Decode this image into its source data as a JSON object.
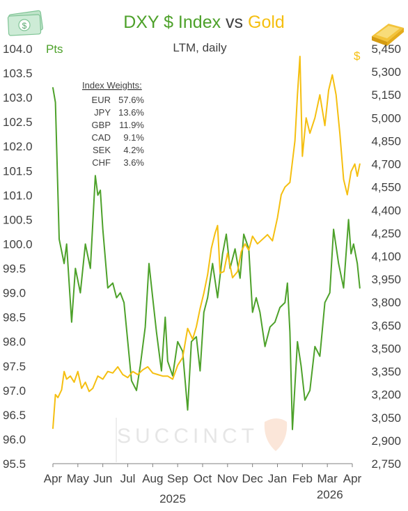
{
  "chart_data": {
    "type": "line",
    "title": {
      "part1": "DXY $ Index",
      "part2": " vs ",
      "part3": "Gold"
    },
    "subtitle": "LTM, daily",
    "colors": {
      "dxy": "#4da12a",
      "gold": "#f5bf10",
      "text": "#404040",
      "axis": "#808080"
    },
    "x_axis": {
      "months": [
        "Apr",
        "May",
        "Jun",
        "Jul",
        "Aug",
        "Sep",
        "Oct",
        "Nov",
        "Dec",
        "Jan",
        "Feb",
        "Mar",
        "Apr"
      ],
      "years": [
        "2025",
        "2026"
      ]
    },
    "y_left": {
      "unit": "Pts",
      "range": [
        95.5,
        104.0
      ],
      "ticks": [
        "104.0",
        "103.5",
        "103.0",
        "102.5",
        "102.0",
        "101.5",
        "101.0",
        "100.5",
        "100.0",
        "99.5",
        "99.0",
        "98.5",
        "98.0",
        "97.5",
        "97.0",
        "96.5",
        "96.0",
        "95.5"
      ]
    },
    "y_right": {
      "unit": "$",
      "range": [
        2750,
        5450
      ],
      "ticks": [
        "5,450",
        "5,300",
        "5,150",
        "5,000",
        "4,850",
        "4,700",
        "4,550",
        "4,400",
        "4,250",
        "4,100",
        "3,950",
        "3,800",
        "3,650",
        "3,500",
        "3,350",
        "3,200",
        "3,050",
        "2,900",
        "2,750"
      ]
    },
    "legend": {
      "heading": "Index Weights:",
      "items": [
        {
          "name": "EUR",
          "weight": "57.6%"
        },
        {
          "name": "JPY",
          "weight": "13.6%"
        },
        {
          "name": "GBP",
          "weight": "11.9%"
        },
        {
          "name": "CAD",
          "weight": "9.1%"
        },
        {
          "name": "SEK",
          "weight": "4.2%"
        },
        {
          "name": "CHF",
          "weight": "3.6%"
        }
      ]
    },
    "watermark": "SUCCINCT",
    "series": [
      {
        "name": "DXY $ Index",
        "axis": "left",
        "points": [
          [
            0.0,
            103.2
          ],
          [
            0.1,
            102.9
          ],
          [
            0.25,
            100.1
          ],
          [
            0.45,
            99.6
          ],
          [
            0.55,
            100.0
          ],
          [
            0.75,
            98.4
          ],
          [
            0.9,
            99.5
          ],
          [
            1.1,
            99.0
          ],
          [
            1.3,
            100.0
          ],
          [
            1.5,
            99.5
          ],
          [
            1.7,
            101.4
          ],
          [
            1.8,
            101.0
          ],
          [
            1.9,
            101.1
          ],
          [
            2.0,
            100.3
          ],
          [
            2.2,
            99.1
          ],
          [
            2.4,
            99.2
          ],
          [
            2.55,
            98.9
          ],
          [
            2.7,
            99.0
          ],
          [
            2.85,
            98.8
          ],
          [
            3.0,
            98.0
          ],
          [
            3.15,
            97.2
          ],
          [
            3.35,
            97.0
          ],
          [
            3.5,
            97.5
          ],
          [
            3.7,
            98.3
          ],
          [
            3.85,
            99.6
          ],
          [
            4.0,
            98.9
          ],
          [
            4.15,
            98.2
          ],
          [
            4.35,
            97.4
          ],
          [
            4.5,
            98.5
          ],
          [
            4.6,
            97.6
          ],
          [
            4.8,
            97.3
          ],
          [
            5.0,
            98.0
          ],
          [
            5.2,
            97.8
          ],
          [
            5.4,
            96.6
          ],
          [
            5.55,
            98.0
          ],
          [
            5.75,
            98.1
          ],
          [
            5.9,
            97.4
          ],
          [
            6.05,
            98.6
          ],
          [
            6.2,
            98.9
          ],
          [
            6.4,
            99.6
          ],
          [
            6.6,
            98.9
          ],
          [
            6.8,
            99.8
          ],
          [
            6.95,
            100.2
          ],
          [
            7.1,
            99.5
          ],
          [
            7.3,
            99.9
          ],
          [
            7.5,
            99.3
          ],
          [
            7.65,
            100.2
          ],
          [
            7.85,
            99.9
          ],
          [
            8.0,
            98.6
          ],
          [
            8.15,
            98.9
          ],
          [
            8.3,
            98.6
          ],
          [
            8.5,
            97.9
          ],
          [
            8.7,
            98.3
          ],
          [
            8.9,
            98.4
          ],
          [
            9.1,
            98.7
          ],
          [
            9.3,
            98.8
          ],
          [
            9.4,
            99.2
          ],
          [
            9.5,
            98.2
          ],
          [
            9.6,
            96.2
          ],
          [
            9.8,
            98.0
          ],
          [
            9.95,
            97.5
          ],
          [
            10.1,
            96.8
          ],
          [
            10.3,
            97.0
          ],
          [
            10.5,
            97.9
          ],
          [
            10.7,
            97.7
          ],
          [
            10.9,
            98.8
          ],
          [
            11.1,
            99.0
          ],
          [
            11.25,
            100.3
          ],
          [
            11.45,
            99.6
          ],
          [
            11.65,
            99.1
          ],
          [
            11.85,
            100.5
          ],
          [
            11.95,
            99.8
          ],
          [
            12.05,
            100.0
          ],
          [
            12.2,
            99.6
          ],
          [
            12.3,
            99.1
          ]
        ]
      },
      {
        "name": "Gold",
        "axis": "right",
        "points": [
          [
            0.0,
            2980
          ],
          [
            0.1,
            3200
          ],
          [
            0.2,
            3180
          ],
          [
            0.35,
            3230
          ],
          [
            0.45,
            3350
          ],
          [
            0.55,
            3300
          ],
          [
            0.7,
            3320
          ],
          [
            0.85,
            3280
          ],
          [
            1.0,
            3350
          ],
          [
            1.15,
            3240
          ],
          [
            1.3,
            3280
          ],
          [
            1.45,
            3220
          ],
          [
            1.6,
            3240
          ],
          [
            1.8,
            3320
          ],
          [
            2.0,
            3300
          ],
          [
            2.2,
            3350
          ],
          [
            2.4,
            3340
          ],
          [
            2.6,
            3380
          ],
          [
            2.8,
            3330
          ],
          [
            3.0,
            3310
          ],
          [
            3.2,
            3350
          ],
          [
            3.4,
            3330
          ],
          [
            3.6,
            3360
          ],
          [
            3.8,
            3380
          ],
          [
            4.0,
            3340
          ],
          [
            4.2,
            3330
          ],
          [
            4.4,
            3320
          ],
          [
            4.6,
            3320
          ],
          [
            4.8,
            3300
          ],
          [
            5.0,
            3390
          ],
          [
            5.2,
            3440
          ],
          [
            5.4,
            3630
          ],
          [
            5.6,
            3560
          ],
          [
            5.75,
            3640
          ],
          [
            5.9,
            3760
          ],
          [
            6.05,
            3860
          ],
          [
            6.2,
            3980
          ],
          [
            6.35,
            4150
          ],
          [
            6.5,
            4250
          ],
          [
            6.6,
            4300
          ],
          [
            6.7,
            3990
          ],
          [
            6.85,
            4000
          ],
          [
            7.0,
            4120
          ],
          [
            7.2,
            3960
          ],
          [
            7.4,
            4000
          ],
          [
            7.55,
            4130
          ],
          [
            7.7,
            4180
          ],
          [
            7.85,
            4140
          ],
          [
            8.0,
            4230
          ],
          [
            8.2,
            4180
          ],
          [
            8.4,
            4210
          ],
          [
            8.6,
            4240
          ],
          [
            8.8,
            4200
          ],
          [
            9.0,
            4350
          ],
          [
            9.15,
            4500
          ],
          [
            9.3,
            4550
          ],
          [
            9.5,
            4580
          ],
          [
            9.7,
            4850
          ],
          [
            9.8,
            5150
          ],
          [
            9.9,
            5400
          ],
          [
            10.0,
            4750
          ],
          [
            10.15,
            5000
          ],
          [
            10.3,
            4900
          ],
          [
            10.5,
            5000
          ],
          [
            10.7,
            5150
          ],
          [
            10.9,
            4950
          ],
          [
            11.05,
            5180
          ],
          [
            11.2,
            5280
          ],
          [
            11.35,
            5150
          ],
          [
            11.5,
            4900
          ],
          [
            11.65,
            4600
          ],
          [
            11.8,
            4500
          ],
          [
            11.95,
            4650
          ],
          [
            12.1,
            4700
          ],
          [
            12.2,
            4620
          ],
          [
            12.3,
            4700
          ]
        ]
      }
    ]
  }
}
